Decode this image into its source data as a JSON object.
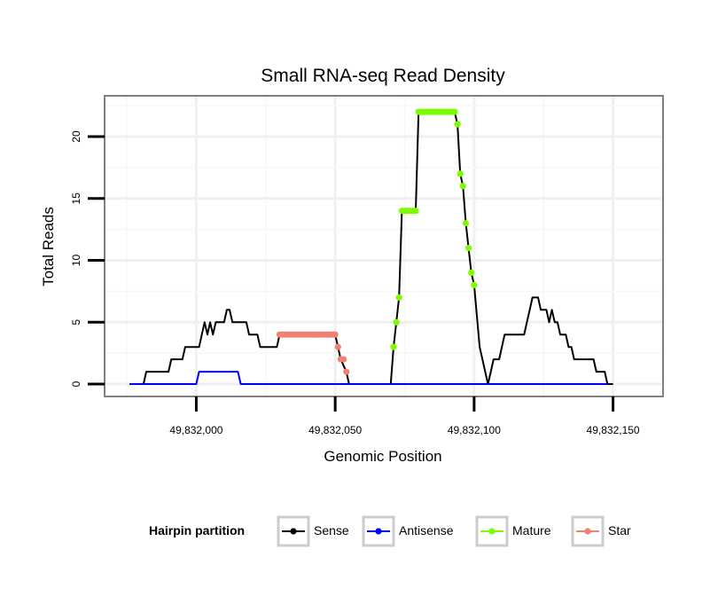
{
  "chart_data": {
    "type": "line",
    "title": "Small RNA-seq Read Density",
    "xlabel": "Genomic Position",
    "ylabel": "Total Reads",
    "xlim": [
      49831967,
      49832168
    ],
    "ylim": [
      -1,
      23.3
    ],
    "x_ticks": [
      {
        "value": 49832000,
        "label": "49,832,000"
      },
      {
        "value": 49832050,
        "label": "49,832,050"
      },
      {
        "value": 49832100,
        "label": "49,832,100"
      },
      {
        "value": 49832150,
        "label": "49,832,150"
      }
    ],
    "y_ticks": [
      {
        "value": 0,
        "label": "0"
      },
      {
        "value": 5,
        "label": "5"
      },
      {
        "value": 10,
        "label": "10"
      },
      {
        "value": 15,
        "label": "15"
      },
      {
        "value": 20,
        "label": "20"
      }
    ],
    "grid": true,
    "legend": {
      "title": "Hairpin partition",
      "position": "bottom",
      "entries": [
        {
          "name": "Sense",
          "color": "#000000"
        },
        {
          "name": "Antisense",
          "color": "#0000ff"
        },
        {
          "name": "Mature",
          "color": "#7cfc00"
        },
        {
          "name": "Star",
          "color": "#f08070"
        }
      ]
    },
    "series": [
      {
        "name": "Sense",
        "color": "#000000",
        "style": "line",
        "points": [
          [
            49831976,
            0
          ],
          [
            49831981,
            0
          ],
          [
            49831982,
            1
          ],
          [
            49831990,
            1
          ],
          [
            49831991,
            2
          ],
          [
            49831995,
            2
          ],
          [
            49831996,
            3
          ],
          [
            49832001,
            3
          ],
          [
            49832002,
            4
          ],
          [
            49832003,
            5
          ],
          [
            49832004,
            4
          ],
          [
            49832005,
            5
          ],
          [
            49832006,
            4
          ],
          [
            49832007,
            5
          ],
          [
            49832010,
            5
          ],
          [
            49832011,
            6
          ],
          [
            49832012,
            6
          ],
          [
            49832013,
            5
          ],
          [
            49832018,
            5
          ],
          [
            49832019,
            4
          ],
          [
            49832022,
            4
          ],
          [
            49832023,
            3
          ],
          [
            49832029,
            3
          ],
          [
            49832030,
            4
          ],
          [
            49832050,
            4
          ],
          [
            49832051,
            3
          ],
          [
            49832052,
            2
          ],
          [
            49832054,
            1
          ],
          [
            49832055,
            0
          ],
          [
            49832070,
            0
          ],
          [
            49832071,
            3
          ],
          [
            49832072,
            5
          ],
          [
            49832073,
            7
          ],
          [
            49832074,
            14
          ],
          [
            49832079,
            14
          ],
          [
            49832080,
            22
          ],
          [
            49832093,
            22
          ],
          [
            49832094,
            21
          ],
          [
            49832095,
            17
          ],
          [
            49832096,
            16
          ],
          [
            49832097,
            13
          ],
          [
            49832098,
            11
          ],
          [
            49832099,
            9
          ],
          [
            49832100,
            8
          ],
          [
            49832102,
            3
          ],
          [
            49832105,
            0
          ],
          [
            49832106,
            1
          ],
          [
            49832107,
            2
          ],
          [
            49832109,
            2
          ],
          [
            49832110,
            3
          ],
          [
            49832111,
            4
          ],
          [
            49832118,
            4
          ],
          [
            49832119,
            5
          ],
          [
            49832120,
            6
          ],
          [
            49832121,
            7
          ],
          [
            49832123,
            7
          ],
          [
            49832124,
            6
          ],
          [
            49832126,
            6
          ],
          [
            49832127,
            5
          ],
          [
            49832128,
            6
          ],
          [
            49832129,
            5
          ],
          [
            49832130,
            5
          ],
          [
            49832131,
            4
          ],
          [
            49832133,
            4
          ],
          [
            49832134,
            3
          ],
          [
            49832135,
            3
          ],
          [
            49832136,
            2
          ],
          [
            49832143,
            2
          ],
          [
            49832144,
            1
          ],
          [
            49832147,
            1
          ],
          [
            49832148,
            0
          ],
          [
            49832150,
            0
          ]
        ]
      },
      {
        "name": "Antisense",
        "color": "#0000ff",
        "style": "line",
        "points": [
          [
            49831976,
            0
          ],
          [
            49832000,
            0
          ],
          [
            49832001,
            1
          ],
          [
            49832015,
            1
          ],
          [
            49832016,
            0
          ],
          [
            49832148,
            0
          ]
        ]
      },
      {
        "name": "Star",
        "color": "#f08070",
        "style": "points",
        "points": [
          [
            49832030,
            4
          ],
          [
            49832031,
            4
          ],
          [
            49832032,
            4
          ],
          [
            49832033,
            4
          ],
          [
            49832034,
            4
          ],
          [
            49832035,
            4
          ],
          [
            49832036,
            4
          ],
          [
            49832037,
            4
          ],
          [
            49832038,
            4
          ],
          [
            49832039,
            4
          ],
          [
            49832040,
            4
          ],
          [
            49832041,
            4
          ],
          [
            49832042,
            4
          ],
          [
            49832043,
            4
          ],
          [
            49832044,
            4
          ],
          [
            49832045,
            4
          ],
          [
            49832046,
            4
          ],
          [
            49832047,
            4
          ],
          [
            49832048,
            4
          ],
          [
            49832049,
            4
          ],
          [
            49832050,
            4
          ],
          [
            49832051,
            3
          ],
          [
            49832052,
            2
          ],
          [
            49832053,
            2
          ],
          [
            49832054,
            1
          ]
        ]
      },
      {
        "name": "Mature",
        "color": "#7cfc00",
        "style": "points",
        "points": [
          [
            49832071,
            3
          ],
          [
            49832072,
            5
          ],
          [
            49832073,
            7
          ],
          [
            49832074,
            14
          ],
          [
            49832075,
            14
          ],
          [
            49832076,
            14
          ],
          [
            49832077,
            14
          ],
          [
            49832078,
            14
          ],
          [
            49832079,
            14
          ],
          [
            49832080,
            22
          ],
          [
            49832081,
            22
          ],
          [
            49832082,
            22
          ],
          [
            49832083,
            22
          ],
          [
            49832084,
            22
          ],
          [
            49832085,
            22
          ],
          [
            49832086,
            22
          ],
          [
            49832087,
            22
          ],
          [
            49832088,
            22
          ],
          [
            49832089,
            22
          ],
          [
            49832090,
            22
          ],
          [
            49832091,
            22
          ],
          [
            49832092,
            22
          ],
          [
            49832093,
            22
          ],
          [
            49832094,
            21
          ],
          [
            49832095,
            17
          ],
          [
            49832096,
            16
          ],
          [
            49832097,
            13
          ],
          [
            49832098,
            11
          ],
          [
            49832099,
            9
          ],
          [
            49832100,
            8
          ]
        ]
      }
    ]
  }
}
